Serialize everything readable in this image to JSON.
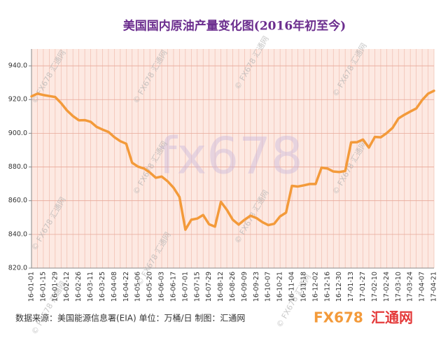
{
  "chart_data": {
    "type": "line",
    "title": "美国国内原油产量变化图(2016年初至今)",
    "categories": [
      "16-01-01",
      null,
      "16-01-15",
      null,
      "16-01-29",
      null,
      "16-02-12",
      null,
      "16-02-26",
      null,
      "16-03-11",
      null,
      "16-03-25",
      null,
      "16-04-08",
      null,
      "16-04-22",
      null,
      "16-05-06",
      null,
      "16-05-20",
      null,
      "16-06-03",
      null,
      "16-06-17",
      null,
      "16-07-01",
      null,
      "16-07-15",
      null,
      "16-07-29",
      null,
      "16-08-12",
      null,
      "16-08-26",
      null,
      "16-09-09",
      null,
      "16-09-23",
      null,
      "16-10-07",
      null,
      "16-10-21",
      null,
      "16-11-04",
      null,
      "16-11-18",
      null,
      "16-12-02",
      null,
      "16-12-16",
      null,
      "16-12-30",
      null,
      "17-01-13",
      null,
      "17-01-27",
      null,
      "17-02-10",
      null,
      "17-02-24",
      null,
      "17-03-10",
      null,
      "17-03-24",
      null,
      "17-04-07",
      null,
      "17-04-21"
    ],
    "values": [
      921.9,
      923.5,
      922.7,
      922.1,
      921.5,
      917.9,
      913.5,
      910.2,
      907.7,
      907.8,
      906.8,
      903.8,
      902.2,
      900.8,
      897.7,
      895.3,
      893.8,
      882.5,
      880.2,
      879.1,
      876.7,
      873.6,
      874.3,
      871.5,
      867.7,
      862.2,
      842.8,
      848.7,
      849.4,
      851.5,
      846.0,
      844.6,
      859.3,
      854.6,
      848.7,
      845.8,
      848.7,
      851.1,
      849.7,
      847.3,
      845.5,
      846.3,
      850.7,
      852.9,
      868.8,
      868.4,
      869.1,
      869.9,
      869.9,
      879.6,
      879.1,
      877.3,
      877.0,
      877.6,
      894.6,
      894.7,
      896.3,
      891.5,
      897.8,
      897.6,
      900.1,
      903.2,
      908.8,
      911.0,
      912.9,
      914.7,
      919.7,
      923.5,
      925.2
    ],
    "color": "#f39a3a",
    "ylim": [
      820,
      950
    ],
    "yticks": [
      {
        "value": 820,
        "label": "820.0"
      },
      {
        "value": 840,
        "label": "840.0"
      },
      {
        "value": 860,
        "label": "860.0"
      },
      {
        "value": 880,
        "label": "880.0"
      },
      {
        "value": 900,
        "label": "900.0"
      },
      {
        "value": 920,
        "label": "920.0"
      },
      {
        "value": 940,
        "label": "940.0"
      }
    ],
    "grid": true,
    "source_note": "数据来源：美国能源信息署(EIA)   单位：万桶/日   制图：汇通网",
    "watermark": "fx678",
    "small_watermark": "© FX678 汇通网",
    "logo_brand": "FX678",
    "logo_name": "汇通网"
  }
}
